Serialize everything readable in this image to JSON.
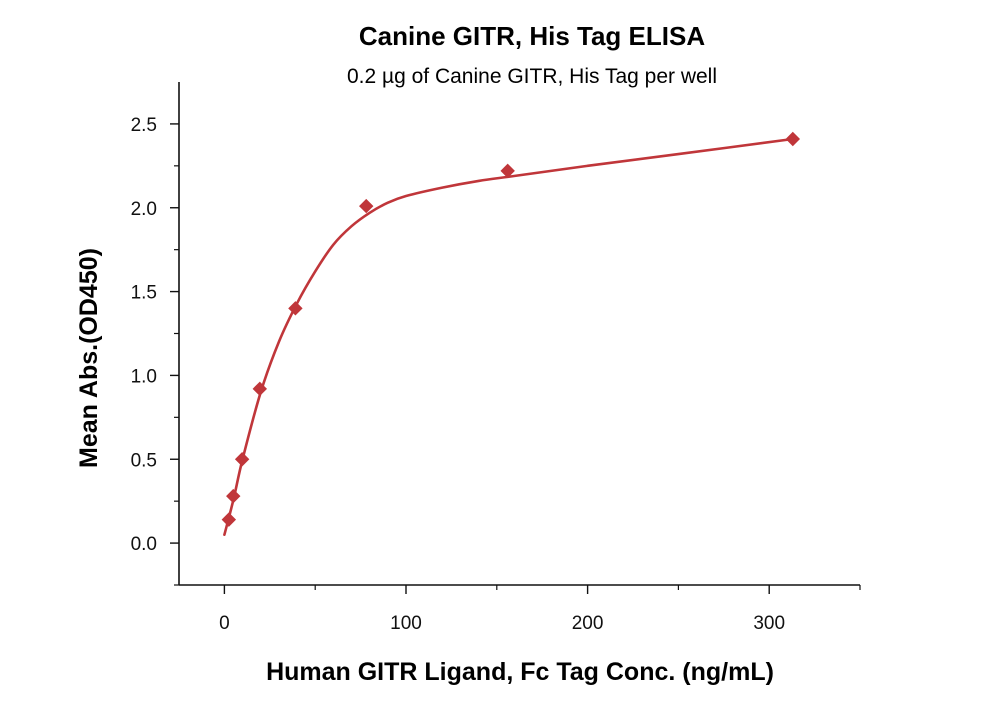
{
  "colors": {
    "series": "#c0363a",
    "axis": "#111111",
    "text": "#111111",
    "background": "#ffffff"
  },
  "chart_data": {
    "type": "scatter",
    "title": "Canine GITR, His Tag ELISA",
    "subtitle": "0.2 µg of Canine GITR, His Tag per well",
    "xlabel": "Human GITR Ligand, Fc Tag Conc. (ng/mL)",
    "ylabel": "Mean Abs.(OD450)",
    "xlim": [
      -25,
      350
    ],
    "ylim": [
      -0.25,
      2.75
    ],
    "x_ticks": [
      0,
      100,
      200,
      300
    ],
    "x_tick_labels": [
      "0",
      "100",
      "200",
      "300"
    ],
    "y_ticks": [
      0.0,
      0.5,
      1.0,
      1.5,
      2.0,
      2.5
    ],
    "y_tick_labels": [
      "0.0",
      "0.5",
      "1.0",
      "1.5",
      "2.0",
      "2.5"
    ],
    "grid": false,
    "legend": "none",
    "series": [
      {
        "marker": "diamond",
        "x": [
          2.44,
          4.88,
          9.77,
          19.5,
          39.1,
          78.1,
          156,
          313
        ],
        "y": [
          0.14,
          0.28,
          0.5,
          0.92,
          1.4,
          2.01,
          2.22,
          2.41
        ]
      }
    ],
    "fit_curve": {
      "style": "smooth line",
      "x": [
        0,
        5,
        10,
        20,
        30,
        40,
        50,
        60,
        70,
        80,
        90,
        100,
        120,
        140,
        160,
        200,
        250,
        313
      ],
      "y": [
        0.05,
        0.26,
        0.5,
        0.9,
        1.2,
        1.43,
        1.62,
        1.78,
        1.89,
        1.97,
        2.03,
        2.07,
        2.12,
        2.16,
        2.19,
        2.25,
        2.32,
        2.41
      ]
    }
  }
}
